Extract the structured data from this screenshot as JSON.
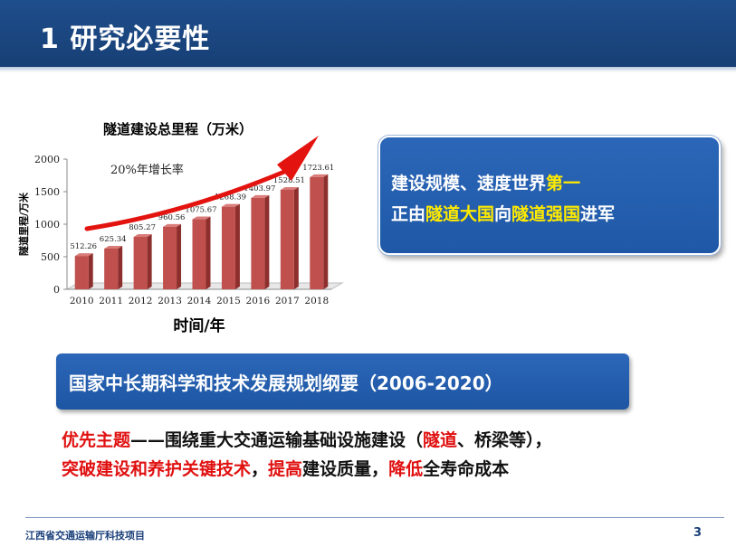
{
  "header": {
    "title": "1 研究必要性"
  },
  "chart_data": {
    "type": "bar",
    "title": "隧道建设总里程（万米）",
    "xlabel": "时间/年",
    "ylabel": "隧道里程/万米",
    "ylim": [
      0,
      2000
    ],
    "yticks": [
      0,
      500,
      1000,
      1500,
      2000
    ],
    "categories": [
      "2010",
      "2011",
      "2012",
      "2013",
      "2014",
      "2015",
      "2016",
      "2017",
      "2018"
    ],
    "values": [
      512.26,
      625.34,
      805.27,
      960.56,
      1075.67,
      1268.39,
      1403.97,
      1528.51,
      1723.61
    ],
    "value_labels": [
      "512.26",
      "625.34",
      "805.27",
      "960.56",
      "1075.67",
      "1268.39",
      "1403.97",
      "1528.51",
      "1723.61"
    ],
    "annotation": "20%年增长率",
    "bar_color": "#c0504d",
    "arrow_color": "#e3130f"
  },
  "callout": {
    "line1_a": "建设规模、速度世界",
    "line1_hl": "第一",
    "line2_a": "正由",
    "line2_hl1": "隧道大国",
    "line2_b": "向",
    "line2_hl2": "隧道强国",
    "line2_c": "进军"
  },
  "banner": {
    "text": "国家中长期科学和技术发展规划纲要（2006-2020）"
  },
  "body": {
    "l1_red1": "优先主题",
    "l1_a": "——围绕重大交通运输基础设施建设（",
    "l1_red2": "隧道",
    "l1_b": "、桥梁等），",
    "l2_red1": "突破建设和养护关键技术",
    "l2_a": "，",
    "l2_red2": "提高",
    "l2_b": "建设质量，",
    "l2_red3": "降低",
    "l2_c": "全寿命成本"
  },
  "footer": {
    "org": "江西省交通运输厅科技项目",
    "page": "3"
  }
}
